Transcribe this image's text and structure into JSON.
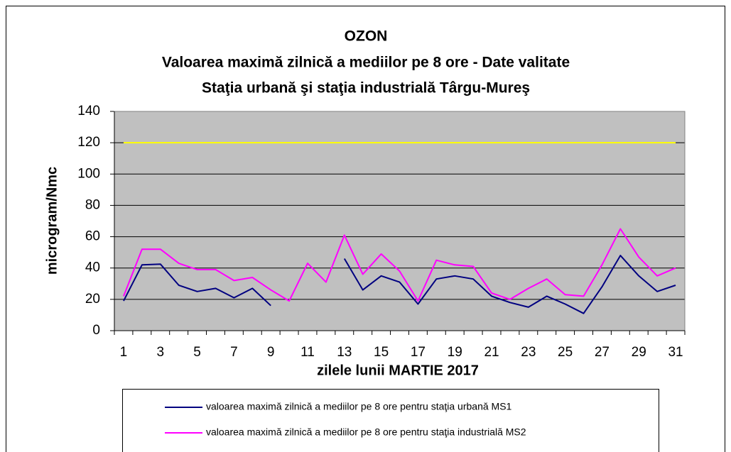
{
  "chart_data": {
    "type": "line",
    "title": "OZON",
    "subtitle": [
      "Valoarea maximă zilnică a mediilor pe 8 ore - Date valitate",
      "Staţia urbană şi staţia industrială Târgu-Mureş"
    ],
    "y_label": "microgram/Nmc",
    "x_label": "zilele lunii MARTIE 2017",
    "categories": [
      "1",
      null,
      "3",
      null,
      "5",
      null,
      "7",
      null,
      "9",
      null,
      "11",
      null,
      "13",
      null,
      "15",
      null,
      "17",
      null,
      "19",
      null,
      "21",
      null,
      "23",
      null,
      "25",
      null,
      "27",
      null,
      "29",
      null,
      "31"
    ],
    "series": [
      {
        "name": "valoarea maximă zilnică a mediilor pe 8 ore pentru staţia urbană MS1",
        "color": "#000080",
        "values": [
          19,
          42,
          42.5,
          29,
          25,
          27,
          21,
          27,
          16,
          null,
          null,
          null,
          46,
          26,
          35,
          31,
          17,
          33,
          35,
          33,
          22,
          18,
          15,
          22,
          17,
          11,
          28,
          48,
          35,
          25,
          29
        ]
      },
      {
        "name": "valoarea maximă zilnică a mediilor pe 8 ore pentru staţia industrială MS2",
        "color": "#ff00ff",
        "values": [
          22,
          52,
          52,
          43,
          39,
          39,
          32,
          34,
          26,
          19,
          43,
          31,
          61,
          36,
          49,
          38,
          19,
          45,
          42,
          41,
          24,
          20,
          27,
          33,
          23,
          22,
          42,
          65,
          47,
          35,
          40
        ]
      }
    ],
    "limit_line": {
      "value": 120,
      "color": "#ffff00"
    },
    "ylim": [
      0,
      140
    ],
    "yticks": [
      0,
      20,
      40,
      60,
      80,
      100,
      120,
      140
    ],
    "grid": true,
    "plot_background": "#c0c0c0"
  }
}
